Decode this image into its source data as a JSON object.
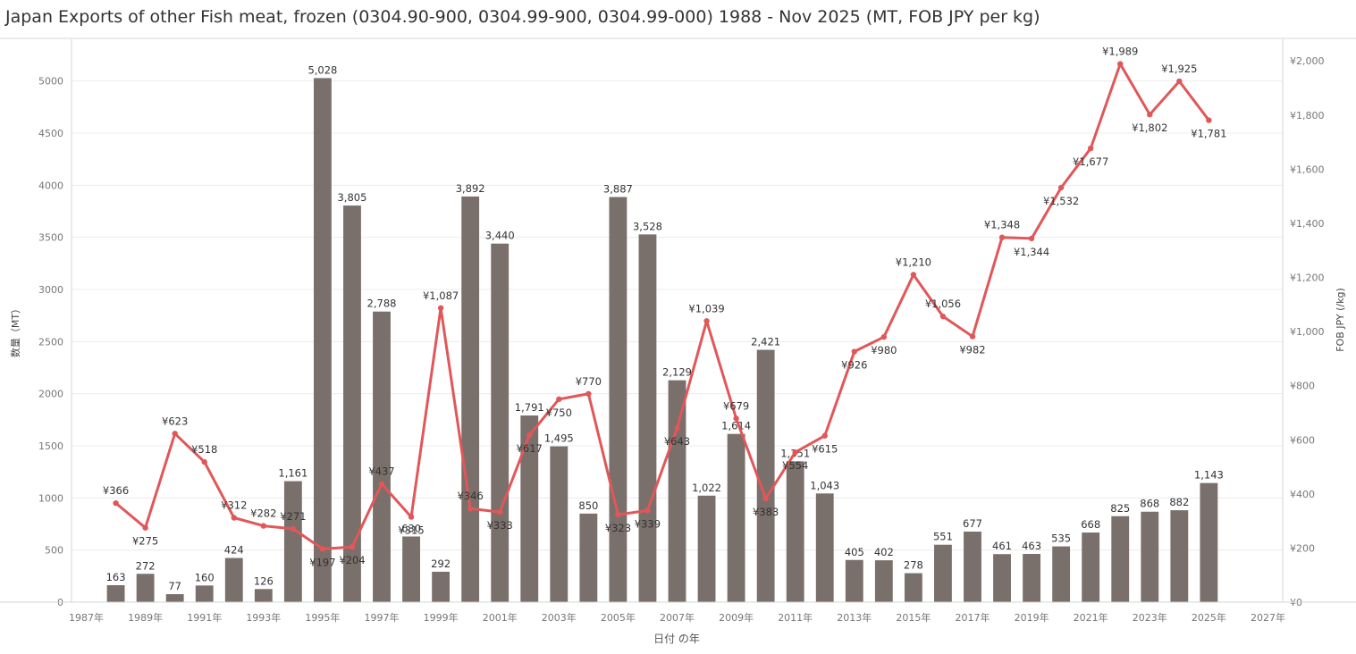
{
  "title": "Japan Exports of other Fish meat, frozen (0304.90-900, 0304.99-900, 0304.99-000) 1988 - Nov 2025 (MT, FOB JPY per kg)",
  "chart_data": {
    "type": "bar",
    "title": "Japan Exports of other Fish meat, frozen (0304.90-900, 0304.99-900, 0304.99-000) 1988 - Nov 2025 (MT, FOB JPY per kg)",
    "xlabel": "日付 の年",
    "ylabel_left": "数量（MT）",
    "ylabel_right": "FOB JPY (/kg)",
    "ylim_left": [
      0,
      5400
    ],
    "ylim_right": [
      0,
      2080
    ],
    "xlim": [
      1986.5,
      2027.5
    ],
    "grid": "horizontal",
    "x_ticks": [
      "1987年",
      "1989年",
      "1991年",
      "1993年",
      "1995年",
      "1997年",
      "1999年",
      "2001年",
      "2003年",
      "2005年",
      "2007年",
      "2009年",
      "2011年",
      "2013年",
      "2015年",
      "2017年",
      "2019年",
      "2021年",
      "2023年",
      "2025年",
      "2027年"
    ],
    "y_ticks_left": [
      "0",
      "500",
      "1000",
      "1500",
      "2000",
      "2500",
      "3000",
      "3500",
      "4000",
      "4500",
      "5000"
    ],
    "y_ticks_right": [
      "¥0",
      "¥200",
      "¥400",
      "¥600",
      "¥800",
      "¥1,000",
      "¥1,200",
      "¥1,400",
      "¥1,600",
      "¥1,800",
      "¥2,000"
    ],
    "x": [
      1988,
      1989,
      1990,
      1991,
      1992,
      1993,
      1994,
      1995,
      1996,
      1997,
      1998,
      1999,
      2000,
      2001,
      2002,
      2003,
      2004,
      2005,
      2006,
      2007,
      2008,
      2009,
      2010,
      2011,
      2012,
      2013,
      2014,
      2015,
      2016,
      2017,
      2018,
      2019,
      2020,
      2021,
      2022,
      2023,
      2024,
      2025
    ],
    "series": [
      {
        "type": "bar",
        "axis": "left",
        "values": [
          163,
          272,
          77,
          160,
          424,
          126,
          1161,
          5028,
          3805,
          2788,
          630,
          292,
          3892,
          3440,
          1791,
          1495,
          850,
          3887,
          3528,
          2129,
          1022,
          1614,
          2421,
          1351,
          1043,
          405,
          402,
          278,
          551,
          677,
          461,
          463,
          535,
          668,
          825,
          868,
          882,
          1143
        ],
        "labels": [
          "163",
          "272",
          "77",
          "160",
          "424",
          "126",
          "1,161",
          "5,028",
          "3,805",
          "2,788",
          "630",
          "292",
          "3,892",
          "3,440",
          "1,791",
          "1,495",
          "850",
          "3,887",
          "3,528",
          "2,129",
          "1,022",
          "1,614",
          "2,421",
          "1,351",
          "1,043",
          "405",
          "402",
          "278",
          "551",
          "677",
          "461",
          "463",
          "535",
          "668",
          "825",
          "868",
          "882",
          "1,143"
        ],
        "color": "#796f6b"
      },
      {
        "type": "line",
        "axis": "right",
        "values": [
          366,
          275,
          623,
          518,
          312,
          282,
          271,
          197,
          204,
          437,
          315,
          1087,
          346,
          333,
          617,
          750,
          770,
          323,
          339,
          643,
          1039,
          679,
          383,
          554,
          615,
          926,
          980,
          1210,
          1056,
          982,
          1348,
          1344,
          1532,
          1677,
          1989,
          1802,
          1925,
          1781
        ],
        "labels": [
          "¥366",
          "¥275",
          "¥623",
          "¥518",
          "¥312",
          "¥282",
          "¥271",
          "¥197",
          "¥204",
          "¥437",
          "¥315",
          "¥1,087",
          "¥346",
          "¥333",
          "¥617",
          "¥750",
          "¥770",
          "¥323",
          "¥339",
          "¥643",
          "¥1,039",
          "¥679",
          "¥383",
          "¥554",
          "¥615",
          "¥926",
          "¥980",
          "¥1,210",
          "¥1,056",
          "¥982",
          "¥1,348",
          "¥1,344",
          "¥1,532",
          "¥1,677",
          "¥1,989",
          "¥1,802",
          "¥1,925",
          "¥1,781"
        ],
        "color": "#e15759"
      }
    ]
  }
}
